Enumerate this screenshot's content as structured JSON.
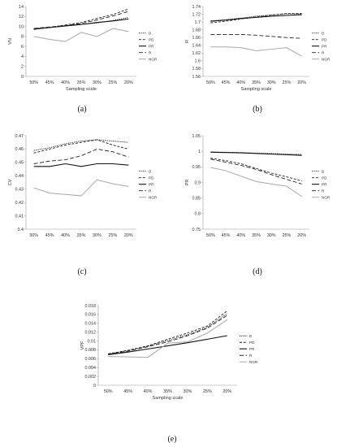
{
  "chart_data": [
    {
      "panel_label": "(a)",
      "type": "line",
      "xlabel": "Sampling scale",
      "ylabel": "VN",
      "categories": [
        "50%",
        "45%",
        "40%",
        "35%",
        "30%",
        "25%",
        "20%"
      ],
      "ylim": [
        0,
        14
      ],
      "yticks": [
        "0",
        "2",
        "4",
        "6",
        "8",
        "10",
        "12",
        "14"
      ],
      "legend_position": "right",
      "series": [
        {
          "name": "D",
          "style": "dotted",
          "values": [
            9.6,
            9.8,
            10.1,
            10.4,
            10.7,
            11.2,
            11.8
          ]
        },
        {
          "name": "PD",
          "style": "dashed",
          "values": [
            9.4,
            9.8,
            10.3,
            10.8,
            11.6,
            12.4,
            13.5
          ]
        },
        {
          "name": "PR",
          "style": "solid",
          "values": [
            9.5,
            9.8,
            10.1,
            10.4,
            10.8,
            11.1,
            11.5
          ]
        },
        {
          "name": "R",
          "style": "longdash",
          "values": [
            9.6,
            9.9,
            10.2,
            10.6,
            11.3,
            12.1,
            13.0
          ]
        },
        {
          "name": "NGR",
          "style": "gray",
          "values": [
            8.0,
            7.4,
            7.0,
            8.8,
            8.0,
            9.6,
            9.0
          ]
        }
      ]
    },
    {
      "panel_label": "(b)",
      "type": "line",
      "xlabel": "Sampling scale",
      "ylabel": "R",
      "categories": [
        "50%",
        "45%",
        "40%",
        "35%",
        "30%",
        "25%",
        "20%"
      ],
      "ylim": [
        1.56,
        1.74
      ],
      "yticks": [
        "1.56",
        "1.58",
        "1.6",
        "1.62",
        "1.64",
        "1.66",
        "1.68",
        "1.7",
        "1.72",
        "1.74"
      ],
      "legend_position": "right",
      "series": [
        {
          "name": "D",
          "style": "dotted",
          "values": [
            1.703,
            1.706,
            1.71,
            1.715,
            1.718,
            1.721,
            1.721
          ]
        },
        {
          "name": "PD",
          "style": "dashed",
          "values": [
            1.698,
            1.702,
            1.708,
            1.713,
            1.718,
            1.722,
            1.722
          ]
        },
        {
          "name": "PR",
          "style": "solid",
          "values": [
            1.702,
            1.705,
            1.709,
            1.712,
            1.715,
            1.717,
            1.719
          ]
        },
        {
          "name": "R",
          "style": "longdash",
          "values": [
            1.668,
            1.668,
            1.668,
            1.666,
            1.663,
            1.66,
            1.658
          ]
        },
        {
          "name": "NGR",
          "style": "gray",
          "values": [
            1.636,
            1.636,
            1.634,
            1.626,
            1.63,
            1.634,
            1.612
          ]
        }
      ]
    },
    {
      "panel_label": "(c)",
      "type": "line",
      "xlabel": "",
      "ylabel": "CV",
      "categories": [
        "50%",
        "45%",
        "40%",
        "35%",
        "30%",
        "25%",
        "20%"
      ],
      "ylim": [
        0.4,
        0.47
      ],
      "yticks": [
        "0.4",
        "0.41",
        "0.42",
        "0.43",
        "0.44",
        "0.45",
        "0.46",
        "0.47"
      ],
      "legend_position": "right",
      "series": [
        {
          "name": "D",
          "style": "dotted",
          "values": [
            0.459,
            0.461,
            0.464,
            0.466,
            0.467,
            0.466,
            0.465
          ]
        },
        {
          "name": "PD",
          "style": "dashed",
          "values": [
            0.457,
            0.46,
            0.463,
            0.465,
            0.467,
            0.463,
            0.46
          ]
        },
        {
          "name": "PR",
          "style": "solid",
          "values": [
            0.447,
            0.447,
            0.449,
            0.447,
            0.449,
            0.449,
            0.448
          ]
        },
        {
          "name": "R",
          "style": "longdash",
          "values": [
            0.449,
            0.451,
            0.452,
            0.455,
            0.46,
            0.458,
            0.454
          ]
        },
        {
          "name": "NGR",
          "style": "gray",
          "values": [
            0.431,
            0.427,
            0.426,
            0.425,
            0.437,
            0.434,
            0.432
          ]
        }
      ]
    },
    {
      "panel_label": "(d)",
      "type": "line",
      "xlabel": "",
      "ylabel": "PR",
      "categories": [
        "50%",
        "45%",
        "40%",
        "35%",
        "30%",
        "25%",
        "20%"
      ],
      "ylim": [
        0.75,
        1.05
      ],
      "yticks": [
        "0.75",
        "0.8",
        "0.85",
        "0.9",
        "0.95",
        "1",
        "1.05"
      ],
      "legend_position": "right",
      "series": [
        {
          "name": "D",
          "style": "dotted",
          "values": [
            0.998,
            0.997,
            0.996,
            0.994,
            0.993,
            0.991,
            0.99
          ]
        },
        {
          "name": "PD",
          "style": "dashed",
          "values": [
            0.978,
            0.97,
            0.96,
            0.945,
            0.93,
            0.918,
            0.905
          ]
        },
        {
          "name": "PR",
          "style": "solid",
          "values": [
            0.997,
            0.996,
            0.995,
            0.993,
            0.991,
            0.989,
            0.987
          ]
        },
        {
          "name": "R",
          "style": "longdash",
          "values": [
            0.975,
            0.965,
            0.955,
            0.942,
            0.925,
            0.91,
            0.895
          ]
        },
        {
          "name": "NGR",
          "style": "gray",
          "values": [
            0.948,
            0.938,
            0.92,
            0.903,
            0.895,
            0.888,
            0.855
          ]
        }
      ]
    },
    {
      "panel_label": "(e)",
      "type": "line",
      "xlabel": "Sampling scale",
      "ylabel": "VPF",
      "categories": [
        "50%",
        "45%",
        "40%",
        "35%",
        "30%",
        "25%",
        "20%"
      ],
      "ylim": [
        0,
        0.018
      ],
      "yticks": [
        "0",
        "0.002",
        "0.004",
        "0.006",
        "0.008",
        "0.01",
        "0.012",
        "0.014",
        "0.016",
        "0.018"
      ],
      "legend_position": "right",
      "series": [
        {
          "name": "D",
          "style": "dotted",
          "values": [
            0.0071,
            0.0078,
            0.0088,
            0.0101,
            0.0114,
            0.0131,
            0.0162
          ]
        },
        {
          "name": "PD",
          "style": "dashed",
          "values": [
            0.0071,
            0.0079,
            0.0089,
            0.0104,
            0.0118,
            0.0134,
            0.0168
          ]
        },
        {
          "name": "PR",
          "style": "solid",
          "values": [
            0.0069,
            0.0075,
            0.0082,
            0.0089,
            0.0096,
            0.0104,
            0.0112
          ]
        },
        {
          "name": "R",
          "style": "longdash",
          "values": [
            0.007,
            0.0077,
            0.0087,
            0.0098,
            0.0112,
            0.0129,
            0.0158
          ]
        },
        {
          "name": "NGR",
          "style": "gray",
          "values": [
            0.0065,
            0.0064,
            0.0063,
            0.0095,
            0.0098,
            0.0118,
            0.0148
          ]
        }
      ]
    }
  ]
}
